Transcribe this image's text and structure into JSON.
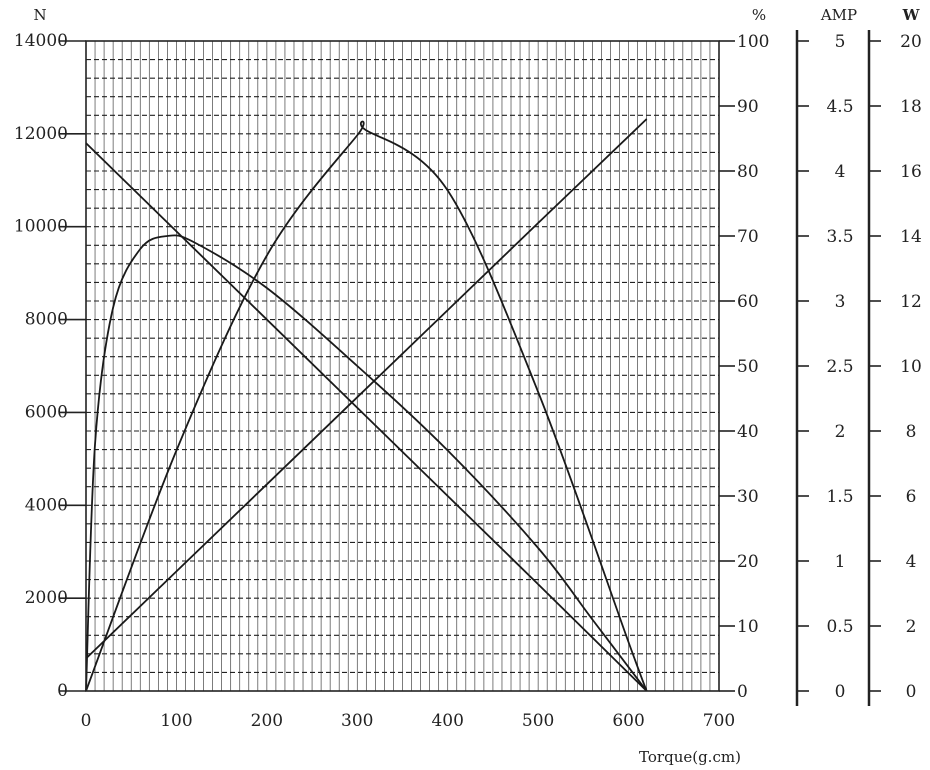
{
  "chart_data": {
    "type": "line",
    "xlabel": "Torque(g.cm)",
    "xlim": [
      0,
      700
    ],
    "x_ticks": [
      "0",
      "100",
      "200",
      "300",
      "400",
      "500",
      "600",
      "700"
    ],
    "grid": true,
    "axes": [
      {
        "id": "speed",
        "unit": "N",
        "ylim": [
          0,
          14000
        ],
        "labels": [
          "0",
          "2000",
          "4000",
          "6000",
          "8000",
          "10000",
          "12000",
          "14000"
        ],
        "label_values": [
          0,
          2000,
          4000,
          6000,
          8000,
          10000,
          12000,
          14000
        ],
        "ticks": [
          0,
          2000,
          4000,
          6000,
          8000,
          10000,
          12000,
          14000
        ]
      },
      {
        "id": "efficiency",
        "unit": "%",
        "ylim": [
          0,
          100
        ],
        "labels": [
          "0",
          "10",
          "20",
          "30",
          "40",
          "50",
          "60",
          "70",
          "80",
          "90",
          "100"
        ]
      },
      {
        "id": "current",
        "unit": "AMP",
        "ylim": [
          0,
          5
        ],
        "labels": [
          "0",
          "0.5",
          "1",
          "1.5",
          "2",
          "2.5",
          "3",
          "3.5",
          "4",
          "4.5",
          "5"
        ]
      },
      {
        "id": "power",
        "unit": "W",
        "ylim": [
          0,
          20
        ],
        "labels": [
          "0",
          "2",
          "4",
          "6",
          "8",
          "10",
          "12",
          "14",
          "16",
          "18",
          "20"
        ]
      }
    ],
    "series": [
      {
        "axis": "speed",
        "x": [
          0,
          100,
          200,
          300,
          400,
          500,
          620
        ],
        "y": [
          11800,
          9900,
          8000,
          6100,
          4200,
          2300,
          0
        ]
      },
      {
        "axis": "efficiency",
        "x": [
          0,
          10,
          30,
          60,
          90,
          120,
          200,
          300,
          400,
          500,
          560,
          620
        ],
        "y": [
          0,
          38,
          59,
          68,
          70,
          69,
          62,
          50,
          37,
          22,
          11,
          0
        ]
      },
      {
        "axis": "current",
        "x": [
          0,
          100,
          200,
          300,
          400,
          500,
          620
        ],
        "y": [
          0.25,
          0.92,
          1.59,
          2.26,
          2.93,
          3.6,
          4.4
        ]
      },
      {
        "axis": "power",
        "x": [
          0,
          100,
          200,
          300,
          310,
          400,
          500,
          600,
          620
        ],
        "y": [
          0,
          7.4,
          13.4,
          17.1,
          17.25,
          15.4,
          9.2,
          1.5,
          0
        ]
      }
    ]
  }
}
